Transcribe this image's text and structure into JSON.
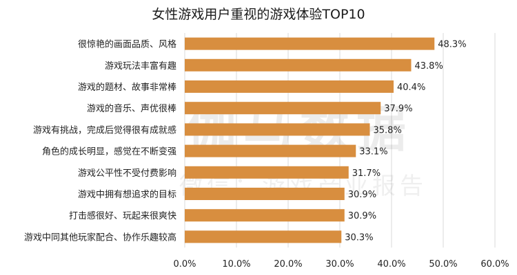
{
  "chart_data": {
    "type": "bar",
    "orientation": "horizontal",
    "title": "女性游戏用户重视的游戏体验TOP10",
    "categories": [
      "很惊艳的画面品质、风格",
      "游戏玩法丰富有趣",
      "游戏的题材、故事非常棒",
      "游戏的音乐、声优很棒",
      "游戏有挑战，完成后觉得很有成就感",
      "角色的成长明显，感觉在不断变强",
      "游戏公平性不受付费影响",
      "游戏中拥有想追求的目标",
      "打击感很好、玩起来很爽快",
      "游戏中同其他玩家配合、协作乐趣较高"
    ],
    "values": [
      48.3,
      43.8,
      40.4,
      37.9,
      35.8,
      33.1,
      31.7,
      30.9,
      30.9,
      30.3
    ],
    "value_labels": [
      "48.3%",
      "43.8%",
      "40.4%",
      "37.9%",
      "35.8%",
      "33.1%",
      "31.7%",
      "30.9%",
      "30.9%",
      "30.3%"
    ],
    "xlim": [
      0,
      60
    ],
    "ticks": [
      "0.0%",
      "10.0%",
      "20.0%",
      "30.0%",
      "40.0%",
      "50.0%",
      "60.0%"
    ],
    "grid": true,
    "bar_color": "#D88E3F",
    "grid_color": "#D9D9D9",
    "watermark": {
      "main": "伽马数据",
      "sub": "微信：游戏产业报告"
    }
  }
}
